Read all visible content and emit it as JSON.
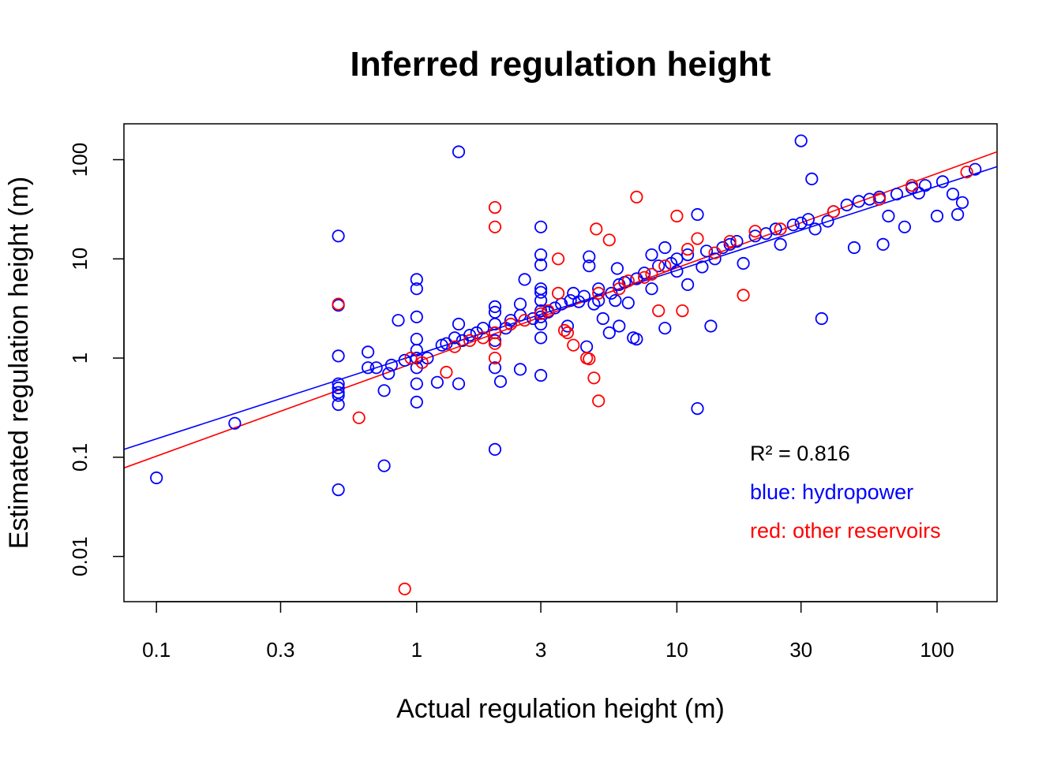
{
  "chart_data": {
    "type": "scatter",
    "title": "Inferred regulation height",
    "xlabel": "Actual regulation height (m)",
    "ylabel": "Estimated regulation height (m)",
    "xscale": "log",
    "yscale": "log",
    "xlim": [
      0.075,
      170
    ],
    "ylim": [
      0.0035,
      230
    ],
    "xticks": [
      {
        "value": 0.1,
        "label": "0.1"
      },
      {
        "value": 0.3,
        "label": "0.3"
      },
      {
        "value": 1,
        "label": "1"
      },
      {
        "value": 3,
        "label": "3"
      },
      {
        "value": 10,
        "label": "10"
      },
      {
        "value": 30,
        "label": "30"
      },
      {
        "value": 100,
        "label": "100"
      }
    ],
    "yticks": [
      {
        "value": 0.01,
        "label": "0.01"
      },
      {
        "value": 0.1,
        "label": "0.1"
      },
      {
        "value": 1,
        "label": "1"
      },
      {
        "value": 10,
        "label": "10"
      },
      {
        "value": 100,
        "label": "100"
      }
    ],
    "grid": false,
    "series": [
      {
        "name": "hydropower",
        "color": "#0000ff",
        "marker": "open-circle",
        "points": [
          [
            0.1,
            0.062
          ],
          [
            0.2,
            0.22
          ],
          [
            0.5,
            17
          ],
          [
            0.5,
            3.4
          ],
          [
            0.5,
            1.05
          ],
          [
            0.5,
            0.55
          ],
          [
            0.5,
            0.5
          ],
          [
            0.5,
            0.45
          ],
          [
            0.5,
            0.42
          ],
          [
            0.5,
            0.34
          ],
          [
            0.5,
            0.047
          ],
          [
            0.65,
            1.15
          ],
          [
            0.65,
            0.8
          ],
          [
            0.7,
            0.8
          ],
          [
            0.75,
            0.47
          ],
          [
            0.75,
            0.082
          ],
          [
            0.78,
            0.7
          ],
          [
            0.8,
            0.85
          ],
          [
            0.85,
            2.4
          ],
          [
            0.9,
            0.95
          ],
          [
            1.0,
            6.2
          ],
          [
            1.0,
            5.0
          ],
          [
            1.0,
            2.6
          ],
          [
            1.0,
            1.55
          ],
          [
            1.0,
            1.2
          ],
          [
            1.0,
            1.0
          ],
          [
            1.0,
            0.8
          ],
          [
            1.0,
            0.55
          ],
          [
            1.0,
            0.36
          ],
          [
            1.1,
            1.0
          ],
          [
            1.2,
            0.57
          ],
          [
            1.25,
            1.35
          ],
          [
            1.3,
            1.4
          ],
          [
            1.4,
            1.6
          ],
          [
            1.45,
            2.2
          ],
          [
            1.45,
            0.55
          ],
          [
            1.45,
            120
          ],
          [
            1.5,
            1.5
          ],
          [
            1.6,
            1.7
          ],
          [
            1.7,
            1.8
          ],
          [
            1.8,
            2.0
          ],
          [
            2.0,
            3.3
          ],
          [
            2.0,
            2.9
          ],
          [
            2.0,
            2.2
          ],
          [
            2.0,
            1.8
          ],
          [
            2.0,
            1.5
          ],
          [
            2.0,
            0.8
          ],
          [
            2.0,
            0.12
          ],
          [
            2.1,
            0.58
          ],
          [
            2.2,
            2.0
          ],
          [
            2.3,
            2.4
          ],
          [
            2.5,
            3.5
          ],
          [
            2.5,
            2.7
          ],
          [
            2.5,
            0.77
          ],
          [
            2.6,
            6.2
          ],
          [
            2.8,
            2.5
          ],
          [
            3.0,
            21
          ],
          [
            3.0,
            11
          ],
          [
            3.0,
            8.7
          ],
          [
            3.0,
            5.0
          ],
          [
            3.0,
            4.6
          ],
          [
            3.0,
            3.8
          ],
          [
            3.0,
            3.0
          ],
          [
            3.0,
            2.6
          ],
          [
            3.0,
            2.2
          ],
          [
            3.0,
            1.6
          ],
          [
            3.0,
            0.67
          ],
          [
            3.2,
            2.9
          ],
          [
            3.4,
            3.2
          ],
          [
            3.6,
            3.5
          ],
          [
            3.8,
            2.1
          ],
          [
            3.9,
            3.8
          ],
          [
            4.0,
            4.5
          ],
          [
            4.2,
            3.7
          ],
          [
            4.4,
            4.2
          ],
          [
            4.5,
            1.3
          ],
          [
            4.6,
            10.5
          ],
          [
            4.6,
            8.5
          ],
          [
            4.8,
            3.5
          ],
          [
            5.0,
            5.0
          ],
          [
            5.0,
            3.8
          ],
          [
            5.2,
            2.5
          ],
          [
            5.5,
            1.8
          ],
          [
            5.6,
            4.5
          ],
          [
            5.8,
            3.8
          ],
          [
            5.9,
            8.0
          ],
          [
            6.0,
            5.5
          ],
          [
            6.0,
            2.1
          ],
          [
            6.3,
            5.8
          ],
          [
            6.5,
            3.6
          ],
          [
            6.8,
            1.6
          ],
          [
            7.0,
            1.55
          ],
          [
            7.0,
            6.3
          ],
          [
            7.5,
            7.2
          ],
          [
            8.0,
            11
          ],
          [
            8.0,
            5.0
          ],
          [
            8.5,
            8.5
          ],
          [
            9.0,
            13
          ],
          [
            9.0,
            2.0
          ],
          [
            9.5,
            9.0
          ],
          [
            10.0,
            10
          ],
          [
            10.0,
            7.5
          ],
          [
            11.0,
            11
          ],
          [
            11.0,
            5.5
          ],
          [
            12.0,
            28
          ],
          [
            12.0,
            0.31
          ],
          [
            12.5,
            8.3
          ],
          [
            13.0,
            12
          ],
          [
            13.5,
            2.1
          ],
          [
            14.0,
            10
          ],
          [
            15.0,
            13
          ],
          [
            16.0,
            14
          ],
          [
            17.0,
            15
          ],
          [
            18.0,
            9.0
          ],
          [
            20.0,
            17
          ],
          [
            22.0,
            18
          ],
          [
            24.0,
            20
          ],
          [
            25.0,
            14
          ],
          [
            28.0,
            22
          ],
          [
            30.0,
            23
          ],
          [
            30.0,
            155
          ],
          [
            32.0,
            25
          ],
          [
            33.0,
            64
          ],
          [
            34.0,
            20
          ],
          [
            36.0,
            2.5
          ],
          [
            38.0,
            24
          ],
          [
            40.0,
            30
          ],
          [
            45.0,
            35
          ],
          [
            48.0,
            13
          ],
          [
            50.0,
            38
          ],
          [
            55.0,
            40
          ],
          [
            60.0,
            42
          ],
          [
            62.0,
            14
          ],
          [
            65.0,
            27
          ],
          [
            70.0,
            45
          ],
          [
            75.0,
            21
          ],
          [
            80.0,
            52
          ],
          [
            85.0,
            46
          ],
          [
            90.0,
            55
          ],
          [
            100.0,
            27
          ],
          [
            105.0,
            60
          ],
          [
            115.0,
            45
          ],
          [
            120.0,
            28
          ],
          [
            125.0,
            37
          ],
          [
            140.0,
            80
          ]
        ]
      },
      {
        "name": "other reservoirs",
        "color": "#ff0000",
        "marker": "open-circle",
        "points": [
          [
            0.5,
            3.5
          ],
          [
            0.6,
            0.25
          ],
          [
            0.9,
            0.0047
          ],
          [
            0.95,
            1.0
          ],
          [
            1.05,
            0.9
          ],
          [
            1.3,
            0.72
          ],
          [
            1.4,
            1.3
          ],
          [
            1.6,
            1.5
          ],
          [
            1.8,
            1.6
          ],
          [
            2.0,
            33
          ],
          [
            2.0,
            21
          ],
          [
            2.0,
            1.8
          ],
          [
            2.0,
            1.4
          ],
          [
            2.0,
            1.0
          ],
          [
            2.3,
            2.2
          ],
          [
            2.6,
            2.4
          ],
          [
            3.0,
            2.8
          ],
          [
            3.2,
            3.0
          ],
          [
            3.5,
            10
          ],
          [
            3.5,
            4.5
          ],
          [
            3.7,
            1.9
          ],
          [
            3.8,
            1.8
          ],
          [
            4.0,
            1.35
          ],
          [
            4.5,
            1.0
          ],
          [
            4.6,
            0.98
          ],
          [
            4.8,
            0.63
          ],
          [
            4.9,
            20
          ],
          [
            5.0,
            0.37
          ],
          [
            5.0,
            4.5
          ],
          [
            5.5,
            15.5
          ],
          [
            6.0,
            5.0
          ],
          [
            6.5,
            6.0
          ],
          [
            7.0,
            42
          ],
          [
            7.5,
            6.5
          ],
          [
            8.0,
            7.0
          ],
          [
            8.5,
            3.0
          ],
          [
            9.0,
            8.5
          ],
          [
            10.0,
            27
          ],
          [
            10.5,
            3.0
          ],
          [
            11.0,
            12.5
          ],
          [
            12.0,
            16
          ],
          [
            14.0,
            11.5
          ],
          [
            16.0,
            15
          ],
          [
            18.0,
            4.3
          ],
          [
            20.0,
            19
          ],
          [
            25.0,
            20
          ],
          [
            40.0,
            30
          ],
          [
            60.0,
            40
          ],
          [
            80.0,
            55
          ],
          [
            130.0,
            75
          ]
        ]
      }
    ],
    "fit_lines": [
      {
        "series": "hydropower",
        "color": "#0000ff",
        "from": [
          0.075,
          0.12
        ],
        "to": [
          170,
          85
        ]
      },
      {
        "series": "other reservoirs",
        "color": "#ff0000",
        "from": [
          0.075,
          0.078
        ],
        "to": [
          170,
          120
        ]
      }
    ],
    "annotations": [
      {
        "text": "R² = 0.816",
        "color": "#000000"
      },
      {
        "text": "blue: hydropower",
        "color": "#0000ff"
      },
      {
        "text": "red: other reservoirs",
        "color": "#ff0000"
      }
    ],
    "annotation_placement": "bottom-right"
  }
}
